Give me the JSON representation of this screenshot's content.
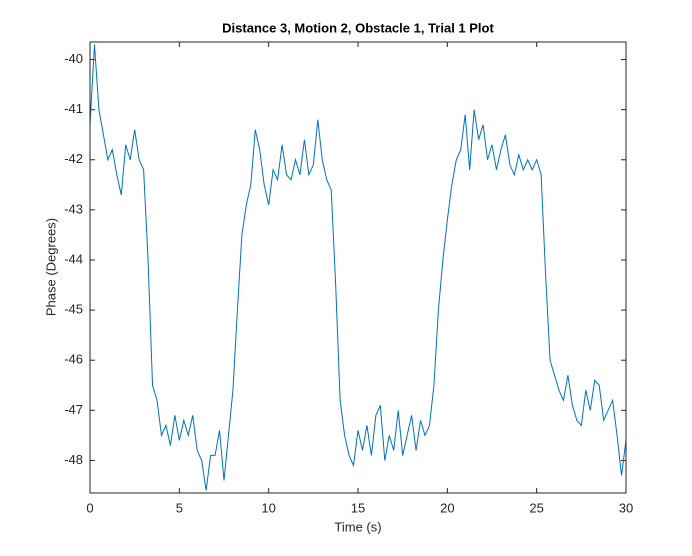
{
  "chart_data": {
    "type": "line",
    "title": "Distance 3, Motion 2, Obstacle 1, Trial 1 Plot",
    "x_label": "Time (s)",
    "y_label": "Phase (Degrees)",
    "xlim": [
      0,
      30
    ],
    "xticks": [
      0,
      5,
      10,
      15,
      20,
      25,
      30
    ],
    "ylim": [
      -48.65,
      -39.65
    ],
    "yticks": [
      -48,
      -47,
      -46,
      -45,
      -44,
      -43,
      -42,
      -41,
      -40
    ],
    "series": [
      {
        "color": "#0072bd",
        "x": [
          0,
          0.25,
          0.5,
          0.75,
          1,
          1.25,
          1.5,
          1.75,
          2,
          2.25,
          2.5,
          2.75,
          3,
          3.25,
          3.5,
          3.75,
          4,
          4.25,
          4.5,
          4.75,
          5,
          5.25,
          5.5,
          5.75,
          6,
          6.25,
          6.5,
          6.75,
          7,
          7.25,
          7.5,
          7.75,
          8,
          8.25,
          8.5,
          8.75,
          9,
          9.25,
          9.5,
          9.75,
          10,
          10.25,
          10.5,
          10.75,
          11,
          11.25,
          11.5,
          11.75,
          12,
          12.25,
          12.5,
          12.75,
          13,
          13.25,
          13.5,
          13.75,
          14,
          14.25,
          14.5,
          14.75,
          15,
          15.25,
          15.5,
          15.75,
          16,
          16.25,
          16.5,
          16.75,
          17,
          17.25,
          17.5,
          17.75,
          18,
          18.25,
          18.5,
          18.75,
          19,
          19.25,
          19.5,
          19.75,
          20,
          20.25,
          20.5,
          20.75,
          21,
          21.25,
          21.5,
          21.75,
          22,
          22.25,
          22.5,
          22.75,
          23,
          23.25,
          23.5,
          23.75,
          24,
          24.25,
          24.5,
          24.75,
          25,
          25.25,
          25.5,
          25.75,
          26,
          26.25,
          26.5,
          26.75,
          27,
          27.25,
          27.5,
          27.75,
          28,
          28.25,
          28.5,
          28.75,
          29,
          29.25,
          29.5,
          29.75,
          30
        ],
        "values": [
          -41.3,
          -39.7,
          -41.0,
          -41.5,
          -42.0,
          -41.8,
          -42.3,
          -42.7,
          -41.7,
          -42.0,
          -41.4,
          -42.0,
          -42.2,
          -44.0,
          -46.5,
          -46.8,
          -47.5,
          -47.3,
          -47.7,
          -47.1,
          -47.6,
          -47.2,
          -47.5,
          -47.1,
          -47.8,
          -48.0,
          -48.6,
          -47.9,
          -47.9,
          -47.4,
          -48.4,
          -47.5,
          -46.6,
          -45.0,
          -43.5,
          -42.9,
          -42.5,
          -41.4,
          -41.8,
          -42.5,
          -42.9,
          -42.2,
          -42.4,
          -41.7,
          -42.3,
          -42.4,
          -42.0,
          -42.3,
          -41.6,
          -42.3,
          -42.1,
          -41.2,
          -42.0,
          -42.4,
          -42.6,
          -44.5,
          -46.8,
          -47.5,
          -47.9,
          -48.1,
          -47.4,
          -47.8,
          -47.3,
          -47.9,
          -47.1,
          -46.9,
          -48.0,
          -47.5,
          -47.8,
          -47.0,
          -47.9,
          -47.5,
          -47.1,
          -47.8,
          -47.2,
          -47.5,
          -47.3,
          -46.5,
          -45.0,
          -44.0,
          -43.2,
          -42.5,
          -42.0,
          -41.8,
          -41.1,
          -42.2,
          -41.0,
          -41.6,
          -41.3,
          -42.0,
          -41.7,
          -42.2,
          -41.8,
          -41.5,
          -42.1,
          -42.3,
          -41.9,
          -42.2,
          -42.0,
          -42.2,
          -42.0,
          -42.3,
          -44.3,
          -46.0,
          -46.3,
          -46.6,
          -46.8,
          -46.3,
          -46.9,
          -47.2,
          -47.3,
          -46.6,
          -47.0,
          -46.4,
          -46.5,
          -47.2,
          -47.0,
          -46.8,
          -47.5,
          -48.3,
          -47.6
        ]
      }
    ]
  }
}
